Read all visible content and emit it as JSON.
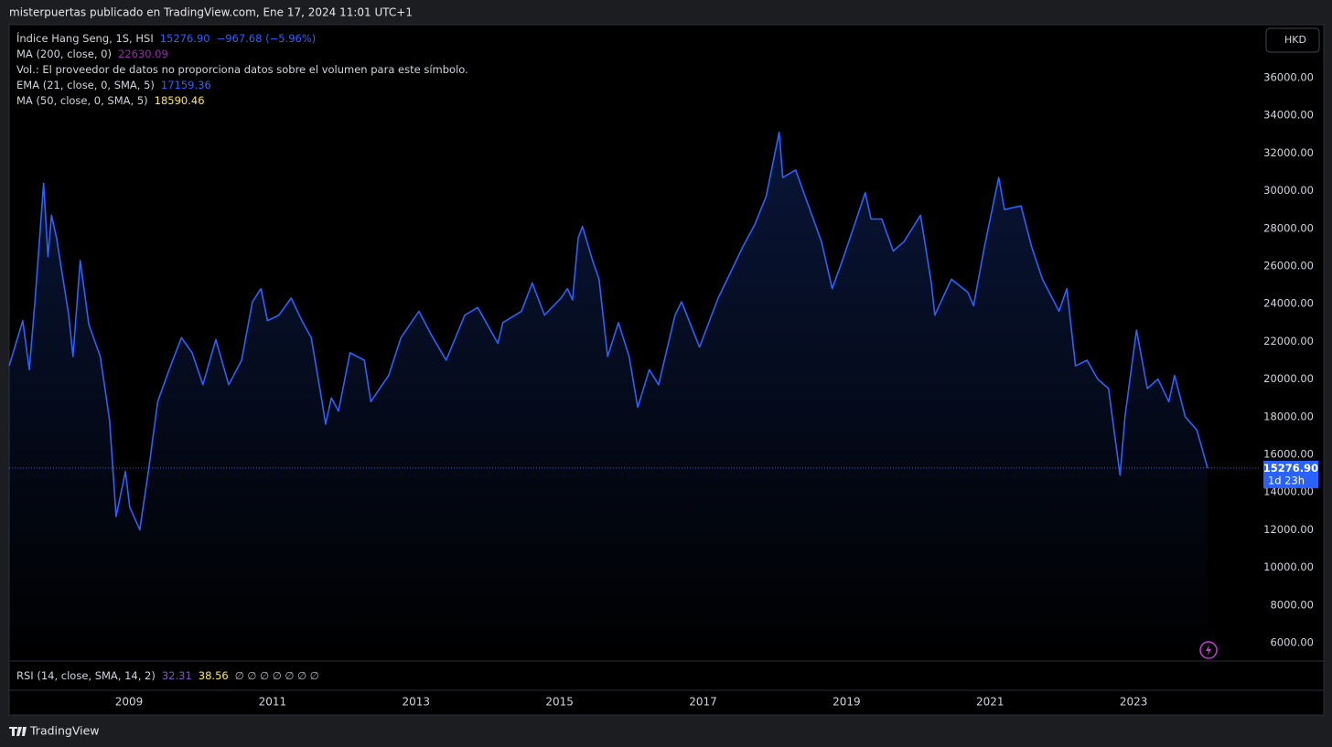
{
  "header": "misterpuertas publicado en TradingView.com, Ene 17, 2024 11:01 UTC+1",
  "currency": "HKD",
  "legend": [
    [
      {
        "text": "Índice Hang Seng, 1S, HSI",
        "color": "#d1d4dc"
      },
      {
        "text": "15276.90",
        "color": "#2962ff"
      },
      {
        "text": "−967.68 (−5.96%)",
        "color": "#2962ff"
      }
    ],
    [
      {
        "text": "MA (200, close, 0)",
        "color": "#d1d4dc"
      },
      {
        "text": "22630.09",
        "color": "#9c27b0"
      }
    ],
    [
      {
        "text": "Vol.: El proveedor de datos no proporciona datos sobre el volumen para este símbolo.",
        "color": "#d1d4dc"
      }
    ],
    [
      {
        "text": "EMA (21, close, 0, SMA, 5)",
        "color": "#d1d4dc"
      },
      {
        "text": "17159.36",
        "color": "#2962ff"
      }
    ],
    [
      {
        "text": "MA (50, close, 0, SMA, 5)",
        "color": "#d1d4dc"
      },
      {
        "text": "18590.46",
        "color": "#ffeb3b"
      }
    ]
  ],
  "rsi_legend": [
    {
      "text": "RSI (14, close, SMA, 14, 2)",
      "color": "#d1d4dc"
    },
    {
      "text": "32.31",
      "color": "#7e57c2"
    },
    {
      "text": "38.56",
      "color": "#ffeb3b"
    },
    {
      "text": "∅ ∅ ∅ ∅ ∅ ∅ ∅",
      "color": "#b2b5be"
    }
  ],
  "price_label": "15276.90",
  "countdown": "1d 23h",
  "footer": "TradingView",
  "chart_data": {
    "type": "line",
    "series": [
      {
        "name": "Índice Hang Seng",
        "color": "#2962ff",
        "x": [
          2007.33,
          2007.52,
          2007.61,
          2007.69,
          2007.81,
          2007.87,
          2007.92,
          2007.99,
          2008.16,
          2008.22,
          2008.32,
          2008.44,
          2008.6,
          2008.73,
          2008.82,
          2008.95,
          2009.01,
          2009.15,
          2009.27,
          2009.4,
          2009.56,
          2009.73,
          2009.88,
          2010.03,
          2010.21,
          2010.39,
          2010.57,
          2010.72,
          2010.84,
          2010.93,
          2011.09,
          2011.26,
          2011.41,
          2011.54,
          2011.69,
          2011.74,
          2011.82,
          2011.92,
          2012.08,
          2012.28,
          2012.37,
          2012.62,
          2012.79,
          2013.04,
          2013.22,
          2013.42,
          2013.68,
          2013.86,
          2014.14,
          2014.21,
          2014.47,
          2014.62,
          2014.79,
          2015.02,
          2015.11,
          2015.18,
          2015.26,
          2015.32,
          2015.46,
          2015.55,
          2015.67,
          2015.82,
          2015.97,
          2016.09,
          2016.25,
          2016.38,
          2016.61,
          2016.7,
          2016.95,
          2017.21,
          2017.4,
          2017.55,
          2017.72,
          2017.88,
          2018.06,
          2018.11,
          2018.29,
          2018.45,
          2018.65,
          2018.8,
          2018.96,
          2019.26,
          2019.34,
          2019.49,
          2019.65,
          2019.8,
          2020.03,
          2020.18,
          2020.23,
          2020.46,
          2020.69,
          2020.77,
          2020.92,
          2021.12,
          2021.2,
          2021.43,
          2021.58,
          2021.73,
          2021.96,
          2022.07,
          2022.19,
          2022.35,
          2022.5,
          2022.65,
          2022.81,
          2022.88,
          2023.04,
          2023.19,
          2023.34,
          2023.49,
          2023.57,
          2023.72,
          2023.88,
          2024.03
        ],
        "values": [
          20700,
          23100,
          20500,
          24100,
          30400,
          26500,
          28700,
          27500,
          23400,
          21200,
          26300,
          22900,
          21200,
          17800,
          12700,
          15100,
          13200,
          12000,
          15100,
          18800,
          20500,
          22200,
          21400,
          19700,
          22100,
          19700,
          21000,
          24100,
          24800,
          23100,
          23400,
          24300,
          23100,
          22200,
          18800,
          17600,
          19000,
          18300,
          21400,
          21000,
          18800,
          20200,
          22200,
          23600,
          22300,
          21000,
          23400,
          23800,
          21900,
          23000,
          23600,
          25100,
          23400,
          24300,
          24800,
          24200,
          27500,
          28100,
          26300,
          25300,
          21200,
          23000,
          21200,
          18500,
          20500,
          19700,
          23400,
          24100,
          21700,
          24300,
          25800,
          27000,
          28200,
          29700,
          33100,
          30700,
          31100,
          29400,
          27300,
          24800,
          26500,
          29900,
          28500,
          28500,
          26800,
          27300,
          28700,
          25100,
          23400,
          25300,
          24600,
          23900,
          27000,
          30700,
          29000,
          29200,
          27000,
          25300,
          23600,
          24800,
          20700,
          21000,
          20000,
          19500,
          14900,
          18000,
          22600,
          19500,
          20000,
          18800,
          20200,
          18000,
          17300,
          15276.9
        ]
      }
    ],
    "xlim": [
      2007.33,
      2024.77
    ],
    "xticks": [
      2009,
      2011,
      2013,
      2015,
      2017,
      2019,
      2021,
      2023
    ],
    "ylim": [
      5078,
      38767
    ],
    "yticks": [
      {
        "value": 6000,
        "label": "6000.00"
      },
      {
        "value": 8000,
        "label": "8000.00"
      },
      {
        "value": 10000,
        "label": "10000.00"
      },
      {
        "value": 12000,
        "label": "12000.00"
      },
      {
        "value": 14000,
        "label": "14000.00"
      },
      {
        "value": 16000,
        "label": "16000.00"
      },
      {
        "value": 18000,
        "label": "18000.00"
      },
      {
        "value": 20000,
        "label": "20000.00"
      },
      {
        "value": 22000,
        "label": "22000.00"
      },
      {
        "value": 24000,
        "label": "24000.00"
      },
      {
        "value": 26000,
        "label": "26000.00"
      },
      {
        "value": 28000,
        "label": "28000.00"
      },
      {
        "value": 30000,
        "label": "30000.00"
      },
      {
        "value": 32000,
        "label": "32000.00"
      },
      {
        "value": 34000,
        "label": "34000.00"
      },
      {
        "value": 36000,
        "label": "36000.00"
      }
    ],
    "grid": false
  }
}
